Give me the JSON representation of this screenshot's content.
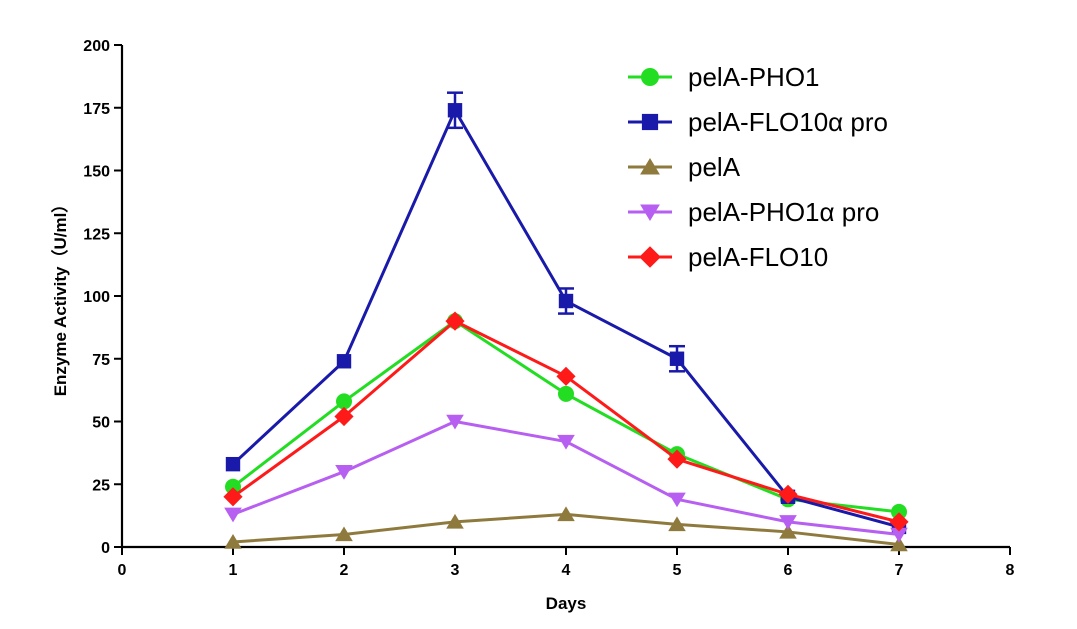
{
  "chart_data": {
    "type": "line",
    "title": "",
    "xlabel": "Days",
    "ylabel": "Enzyme Activity（U/ml）",
    "xlim": [
      0,
      8
    ],
    "ylim": [
      0,
      200
    ],
    "x_ticks": [
      "0",
      "1",
      "2",
      "3",
      "4",
      "5",
      "6",
      "7",
      "8"
    ],
    "y_ticks": [
      "0",
      "25",
      "50",
      "75",
      "100",
      "125",
      "150",
      "175",
      "200"
    ],
    "grid": false,
    "legend_position": "top-right",
    "x": [
      1,
      2,
      3,
      4,
      5,
      6,
      7
    ],
    "series": [
      {
        "name": "pelA-PHO1",
        "color": "#22dd22",
        "marker": "circle",
        "values": [
          24,
          58,
          90,
          61,
          37,
          19,
          14
        ],
        "errors": [
          0,
          0,
          0,
          0,
          0,
          0,
          0
        ]
      },
      {
        "name": "pelA-FLO10α pro",
        "color": "#1a1aaa",
        "marker": "square",
        "values": [
          33,
          74,
          174,
          98,
          75,
          20,
          8
        ],
        "errors": [
          0,
          0,
          7,
          5,
          5,
          0,
          0
        ]
      },
      {
        "name": "pelA",
        "color": "#8f7a3e",
        "marker": "triangle-up",
        "values": [
          2,
          5,
          10,
          13,
          9,
          6,
          1
        ],
        "errors": [
          0,
          0,
          0,
          0,
          0,
          0,
          0
        ]
      },
      {
        "name": "pelA-PHO1α pro",
        "color": "#b75ff0",
        "marker": "triangle-down",
        "values": [
          13,
          30,
          50,
          42,
          19,
          10,
          5
        ],
        "errors": [
          0,
          0,
          0,
          0,
          0,
          0,
          0
        ]
      },
      {
        "name": "pelA-FLO10",
        "color": "#ff1a1a",
        "marker": "diamond",
        "values": [
          20,
          52,
          90,
          68,
          35,
          21,
          10
        ],
        "errors": [
          0,
          0,
          0,
          0,
          0,
          0,
          0
        ]
      }
    ]
  }
}
